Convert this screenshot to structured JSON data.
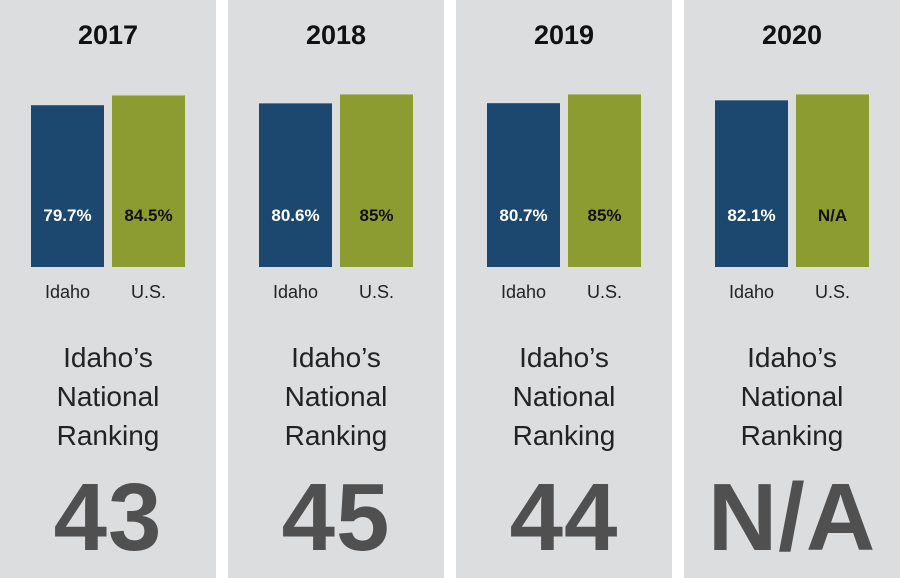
{
  "colors": {
    "idaho": "#1c4870",
    "us": "#8c9c30",
    "panel_bg": "#dcdddf",
    "rank_text": "#505050"
  },
  "chart_data": [
    {
      "type": "bar",
      "title": "2017",
      "categories": [
        "Idaho",
        "U.S."
      ],
      "values": [
        79.7,
        84.5
      ],
      "data_labels": [
        "79.7%",
        "84.5%"
      ],
      "ylim": [
        0,
        85
      ]
    },
    {
      "type": "bar",
      "title": "2018",
      "categories": [
        "Idaho",
        "U.S."
      ],
      "values": [
        80.6,
        85
      ],
      "data_labels": [
        "80.6%",
        "85%"
      ],
      "ylim": [
        0,
        85
      ]
    },
    {
      "type": "bar",
      "title": "2019",
      "categories": [
        "Idaho",
        "U.S."
      ],
      "values": [
        80.7,
        85
      ],
      "data_labels": [
        "80.7%",
        "85%"
      ],
      "ylim": [
        0,
        85
      ]
    },
    {
      "type": "bar",
      "title": "2020",
      "categories": [
        "Idaho",
        "U.S."
      ],
      "values": [
        82.1,
        null
      ],
      "data_labels": [
        "82.1%",
        "N/A"
      ],
      "ylim": [
        0,
        85
      ]
    }
  ],
  "ranking": {
    "title_lines": [
      "Idaho’s",
      "National",
      "Ranking"
    ],
    "values": [
      "43",
      "45",
      "44",
      "N/A"
    ]
  }
}
